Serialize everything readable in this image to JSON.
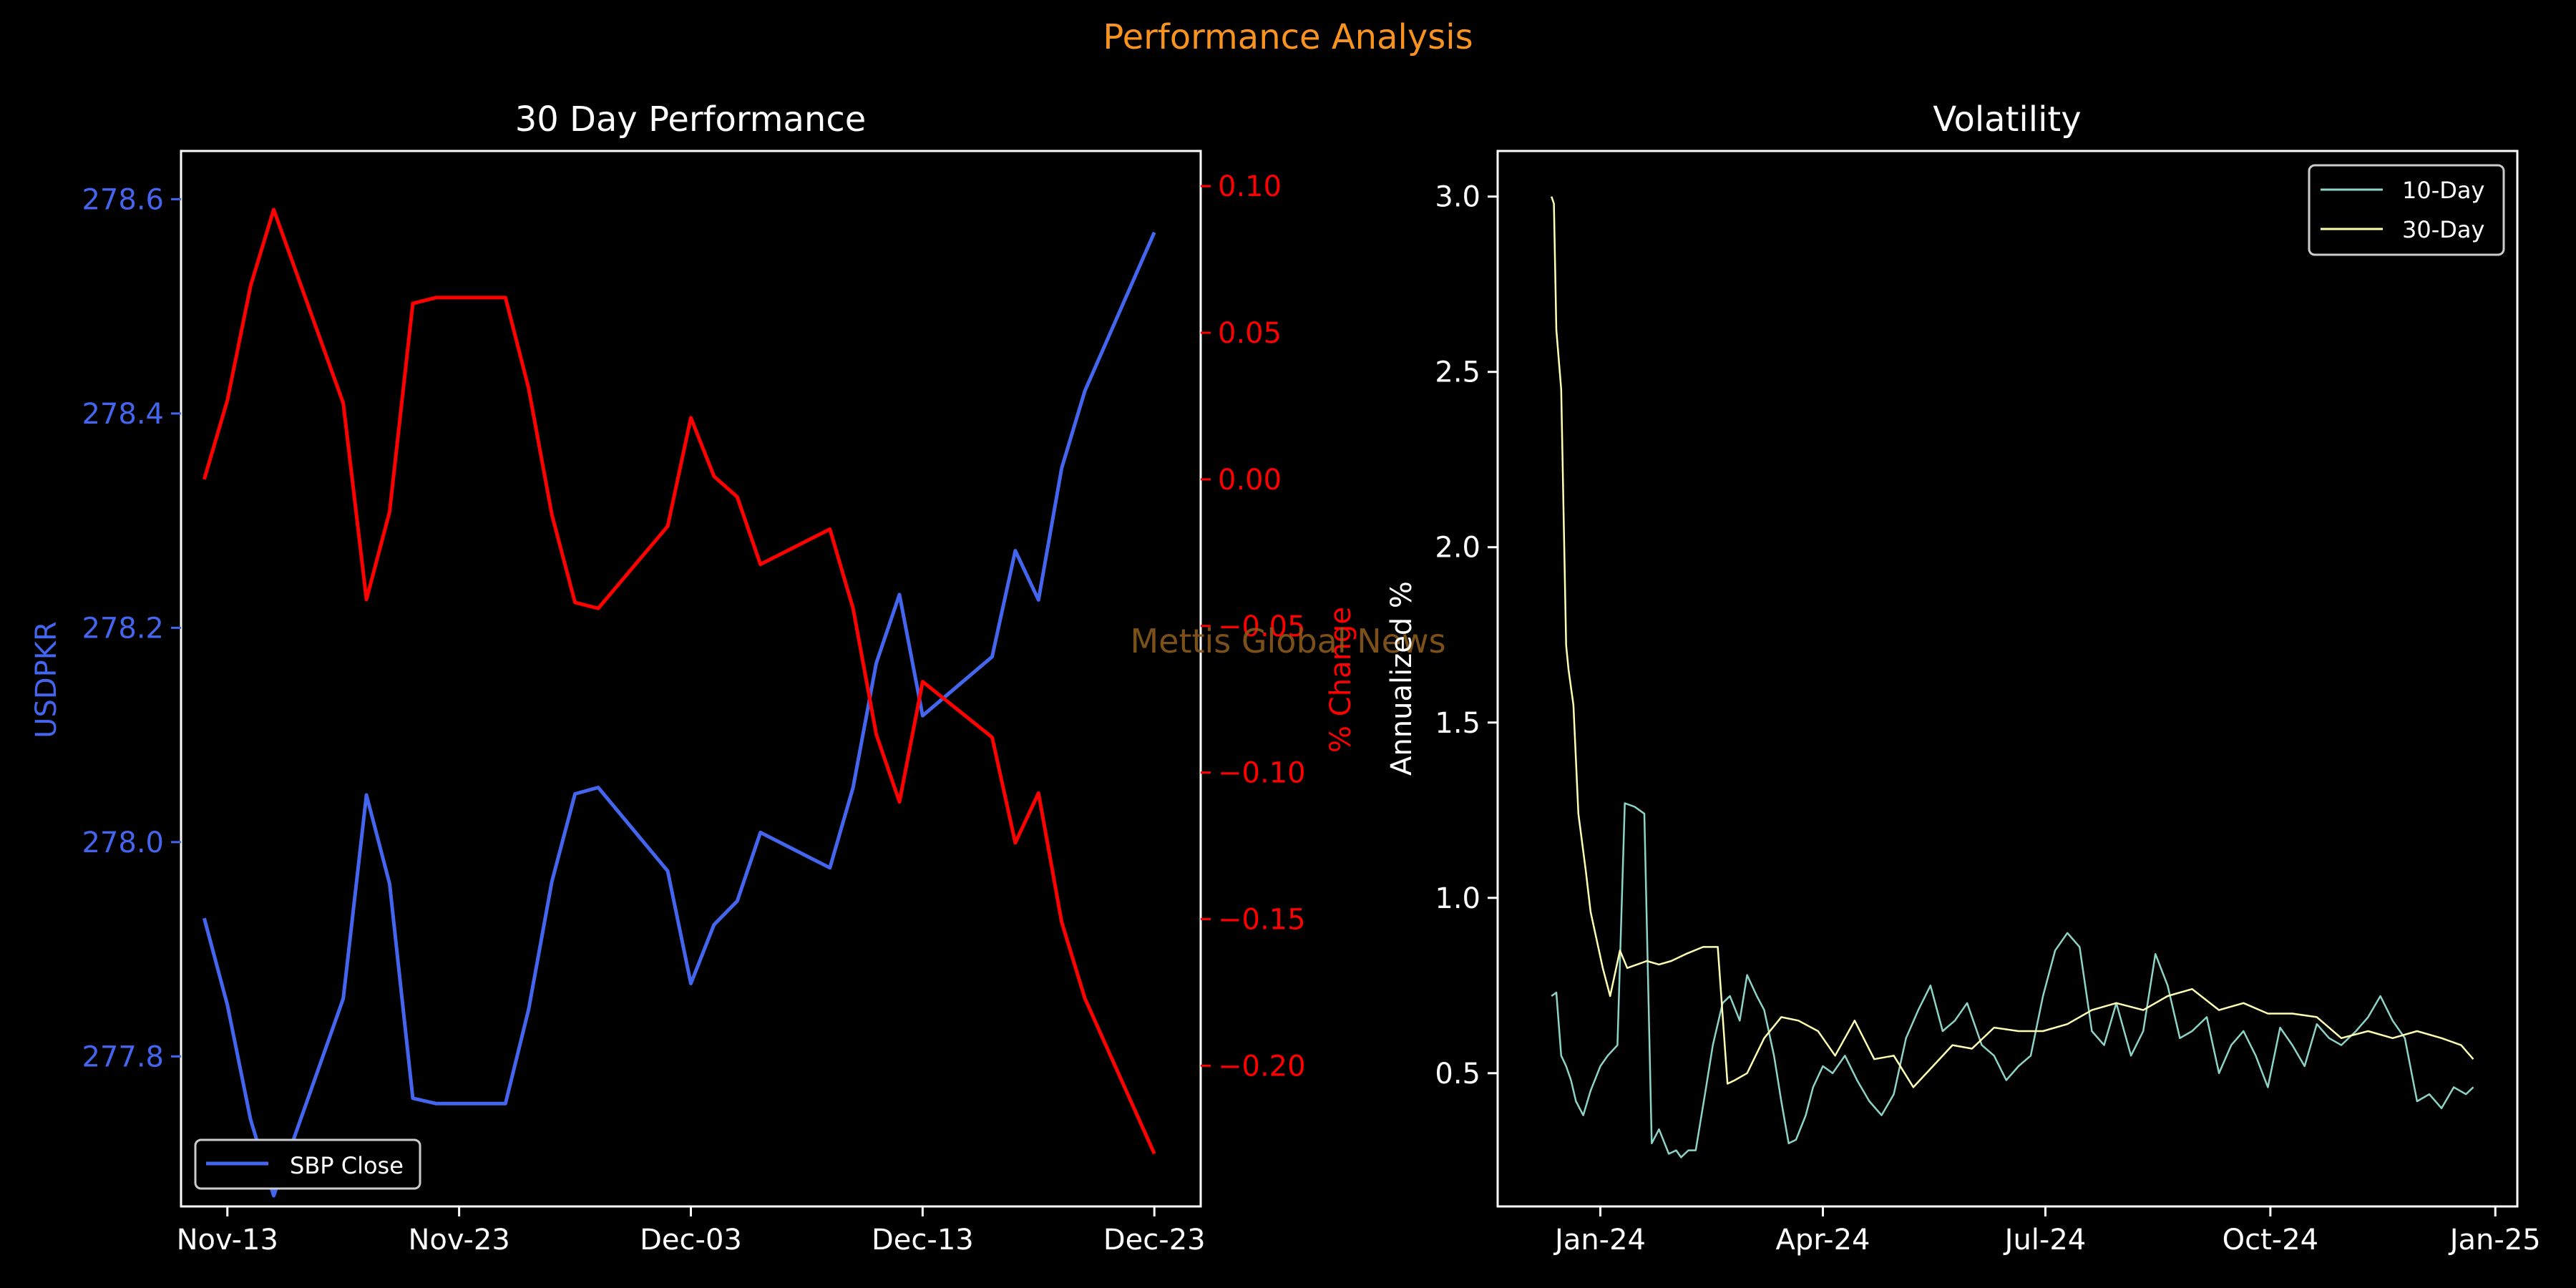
{
  "figure": {
    "title": "Performance Analysis",
    "watermark": "Mettis Global News",
    "colors": {
      "background": "#000000",
      "title": "#f7931e",
      "price": "#4466ee",
      "change": "#ff0000",
      "vol10": "#8dd3c7",
      "vol30": "#ffffb3",
      "axis": "#ffffff",
      "watermark": "#8a5a1c"
    }
  },
  "chart_data": [
    {
      "type": "line",
      "title": "30 Day Performance",
      "ylabel": "USDPKR",
      "y2label": "% Change",
      "x_ticks": [
        "Nov-13",
        "Nov-23",
        "Dec-03",
        "Dec-13",
        "Dec-23"
      ],
      "x_tick_dates": [
        "2024-11-13",
        "2024-11-23",
        "2024-12-03",
        "2024-12-13",
        "2024-12-23"
      ],
      "y_ticks": [
        "277.8",
        "278.0",
        "278.2",
        "278.4",
        "278.6"
      ],
      "y_tick_values": [
        277.8,
        278.0,
        278.2,
        278.4,
        278.6
      ],
      "y2_ticks": [
        "−0.20",
        "−0.15",
        "−0.10",
        "−0.05",
        "0.00",
        "0.05",
        "0.10"
      ],
      "y2_tick_values": [
        -0.2,
        -0.15,
        -0.1,
        -0.05,
        0.0,
        0.05,
        0.1
      ],
      "xlim": [
        "2024-11-11",
        "2024-12-25"
      ],
      "ylim": [
        277.66,
        278.645
      ],
      "y2lim": [
        -0.248,
        0.112
      ],
      "legend": "lower left",
      "series": [
        {
          "name": "SBP Close",
          "axis": "left",
          "x": [
            "2024-11-12",
            "2024-11-13",
            "2024-11-14",
            "2024-11-15",
            "2024-11-18",
            "2024-11-19",
            "2024-11-20",
            "2024-11-21",
            "2024-11-22",
            "2024-11-25",
            "2024-11-26",
            "2024-11-27",
            "2024-11-28",
            "2024-11-29",
            "2024-12-02",
            "2024-12-03",
            "2024-12-04",
            "2024-12-05",
            "2024-12-06",
            "2024-12-09",
            "2024-12-10",
            "2024-12-11",
            "2024-12-12",
            "2024-12-13",
            "2024-12-16",
            "2024-12-17",
            "2024-12-18",
            "2024-12-19",
            "2024-12-20",
            "2024-12-23"
          ],
          "values": [
            277.929,
            277.848,
            277.741,
            277.67,
            277.854,
            278.044,
            277.961,
            277.761,
            277.756,
            277.756,
            277.844,
            277.963,
            278.045,
            278.051,
            277.973,
            277.868,
            277.923,
            277.945,
            278.009,
            277.976,
            278.051,
            278.167,
            278.231,
            278.118,
            278.173,
            278.272,
            278.226,
            278.349,
            278.421,
            278.569
          ]
        },
        {
          "name": "% Change",
          "axis": "right",
          "x": [
            "2024-11-12",
            "2024-11-13",
            "2024-11-14",
            "2024-11-15",
            "2024-11-18",
            "2024-11-19",
            "2024-11-20",
            "2024-11-21",
            "2024-11-22",
            "2024-11-25",
            "2024-11-26",
            "2024-11-27",
            "2024-11-28",
            "2024-11-29",
            "2024-12-02",
            "2024-12-03",
            "2024-12-04",
            "2024-12-05",
            "2024-12-06",
            "2024-12-09",
            "2024-12-10",
            "2024-12-11",
            "2024-12-12",
            "2024-12-13",
            "2024-12-16",
            "2024-12-17",
            "2024-12-18",
            "2024-12-19",
            "2024-12-20",
            "2024-12-23"
          ],
          "values": [
            0.0,
            0.027,
            0.066,
            0.092,
            0.026,
            -0.041,
            -0.011,
            0.06,
            0.062,
            0.062,
            0.031,
            -0.012,
            -0.042,
            -0.044,
            -0.016,
            0.021,
            0.001,
            -0.006,
            -0.029,
            -0.017,
            -0.044,
            -0.087,
            -0.11,
            -0.069,
            -0.088,
            -0.124,
            -0.107,
            -0.151,
            -0.177,
            -0.23
          ]
        }
      ]
    },
    {
      "type": "line",
      "title": "Volatility",
      "ylabel": "Annualized %",
      "x_ticks": [
        "Jan-24",
        "Apr-24",
        "Jul-24",
        "Oct-24",
        "Jan-25"
      ],
      "x_tick_dates": [
        "2024-01-01",
        "2024-04-01",
        "2024-07-01",
        "2024-10-01",
        "2025-01-01"
      ],
      "y_ticks": [
        "0.5",
        "1.0",
        "1.5",
        "2.0",
        "2.5",
        "3.0"
      ],
      "y_tick_values": [
        0.5,
        1.0,
        1.5,
        2.0,
        2.5,
        3.0
      ],
      "xlim": [
        "2023-11-20",
        "2025-01-10"
      ],
      "ylim": [
        0.12,
        3.13
      ],
      "legend": "upper right",
      "series": [
        {
          "name": "10-Day",
          "x": [
            "2023-12-12",
            "2023-12-14",
            "2023-12-16",
            "2023-12-18",
            "2023-12-20",
            "2023-12-22",
            "2023-12-25",
            "2023-12-28",
            "2024-01-01",
            "2024-01-04",
            "2024-01-08",
            "2024-01-11",
            "2024-01-15",
            "2024-01-17",
            "2024-01-19",
            "2024-01-22",
            "2024-01-25",
            "2024-01-29",
            "2024-02-01",
            "2024-02-03",
            "2024-02-06",
            "2024-02-09",
            "2024-02-13",
            "2024-02-16",
            "2024-02-20",
            "2024-02-23",
            "2024-02-27",
            "2024-03-01",
            "2024-03-05",
            "2024-03-08",
            "2024-03-12",
            "2024-03-15",
            "2024-03-18",
            "2024-03-21",
            "2024-03-25",
            "2024-03-28",
            "2024-04-01",
            "2024-04-05",
            "2024-04-10",
            "2024-04-15",
            "2024-04-20",
            "2024-04-25",
            "2024-04-30",
            "2024-05-05",
            "2024-05-10",
            "2024-05-15",
            "2024-05-20",
            "2024-05-25",
            "2024-05-30",
            "2024-06-05",
            "2024-06-10",
            "2024-06-15",
            "2024-06-20",
            "2024-06-25",
            "2024-06-30",
            "2024-07-05",
            "2024-07-10",
            "2024-07-15",
            "2024-07-20",
            "2024-07-25",
            "2024-07-30",
            "2024-08-05",
            "2024-08-10",
            "2024-08-15",
            "2024-08-20",
            "2024-08-25",
            "2024-08-30",
            "2024-09-05",
            "2024-09-10",
            "2024-09-15",
            "2024-09-20",
            "2024-09-25",
            "2024-09-30",
            "2024-10-05",
            "2024-10-10",
            "2024-10-15",
            "2024-10-20",
            "2024-10-25",
            "2024-10-30",
            "2024-11-05",
            "2024-11-10",
            "2024-11-15",
            "2024-11-20",
            "2024-11-25",
            "2024-11-30",
            "2024-12-05",
            "2024-12-10",
            "2024-12-15",
            "2024-12-20",
            "2024-12-23"
          ],
          "values": [
            0.72,
            0.73,
            0.55,
            0.52,
            0.48,
            0.42,
            0.38,
            0.45,
            0.52,
            0.55,
            0.58,
            1.27,
            1.26,
            1.25,
            1.24,
            0.3,
            0.34,
            0.27,
            0.28,
            0.26,
            0.28,
            0.28,
            0.45,
            0.58,
            0.7,
            0.72,
            0.65,
            0.78,
            0.72,
            0.68,
            0.55,
            0.42,
            0.3,
            0.31,
            0.38,
            0.46,
            0.52,
            0.5,
            0.55,
            0.48,
            0.42,
            0.38,
            0.44,
            0.6,
            0.68,
            0.75,
            0.62,
            0.65,
            0.7,
            0.58,
            0.55,
            0.48,
            0.52,
            0.55,
            0.72,
            0.85,
            0.9,
            0.86,
            0.62,
            0.58,
            0.7,
            0.55,
            0.62,
            0.84,
            0.75,
            0.6,
            0.62,
            0.66,
            0.5,
            0.58,
            0.62,
            0.55,
            0.46,
            0.63,
            0.58,
            0.52,
            0.64,
            0.6,
            0.58,
            0.62,
            0.66,
            0.72,
            0.65,
            0.6,
            0.42,
            0.44,
            0.4,
            0.46,
            0.44,
            0.46
          ]
        },
        {
          "name": "30-Day",
          "x": [
            "2023-12-12",
            "2023-12-13",
            "2023-12-14",
            "2023-12-16",
            "2023-12-18",
            "2023-12-19",
            "2023-12-21",
            "2023-12-23",
            "2023-12-26",
            "2023-12-28",
            "2024-01-02",
            "2024-01-05",
            "2024-01-09",
            "2024-01-12",
            "2024-01-16",
            "2024-01-20",
            "2024-01-25",
            "2024-01-30",
            "2024-02-05",
            "2024-02-12",
            "2024-02-18",
            "2024-02-22",
            "2024-02-25",
            "2024-03-01",
            "2024-03-08",
            "2024-03-15",
            "2024-03-22",
            "2024-03-30",
            "2024-04-06",
            "2024-04-14",
            "2024-04-22",
            "2024-04-30",
            "2024-05-08",
            "2024-05-16",
            "2024-05-24",
            "2024-06-01",
            "2024-06-10",
            "2024-06-20",
            "2024-06-30",
            "2024-07-10",
            "2024-07-20",
            "2024-07-30",
            "2024-08-10",
            "2024-08-20",
            "2024-08-30",
            "2024-09-10",
            "2024-09-20",
            "2024-09-30",
            "2024-10-10",
            "2024-10-20",
            "2024-10-30",
            "2024-11-10",
            "2024-11-20",
            "2024-11-30",
            "2024-12-10",
            "2024-12-18",
            "2024-12-23"
          ],
          "values": [
            3.0,
            2.98,
            2.62,
            2.45,
            1.72,
            1.65,
            1.55,
            1.24,
            1.08,
            0.96,
            0.8,
            0.72,
            0.85,
            0.8,
            0.81,
            0.82,
            0.81,
            0.82,
            0.84,
            0.86,
            0.86,
            0.47,
            0.48,
            0.5,
            0.6,
            0.66,
            0.65,
            0.62,
            0.55,
            0.65,
            0.54,
            0.55,
            0.46,
            0.52,
            0.58,
            0.57,
            0.63,
            0.62,
            0.62,
            0.64,
            0.68,
            0.7,
            0.68,
            0.72,
            0.74,
            0.68,
            0.7,
            0.67,
            0.67,
            0.66,
            0.6,
            0.62,
            0.6,
            0.62,
            0.6,
            0.58,
            0.54
          ]
        }
      ]
    }
  ]
}
